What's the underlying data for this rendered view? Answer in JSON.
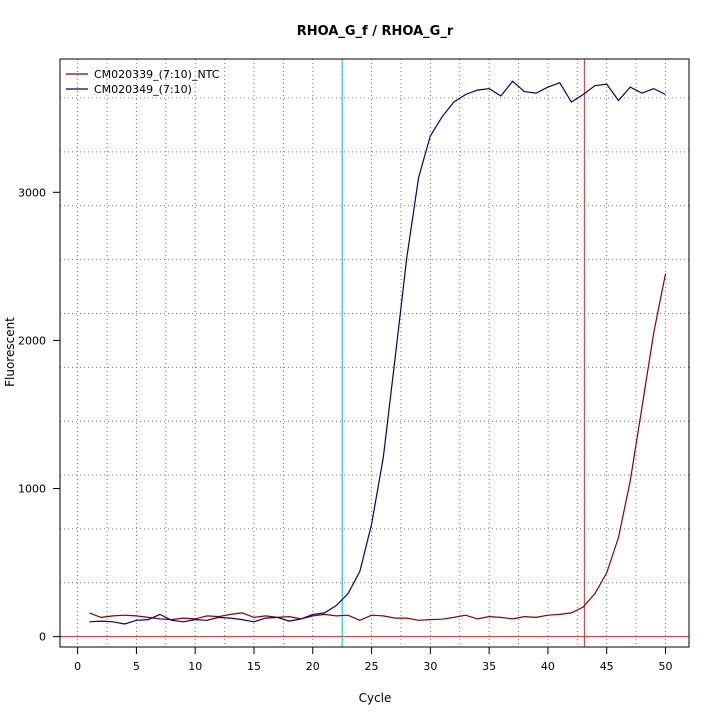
{
  "chart_data": {
    "type": "line",
    "title": "RHOA_G_f / RHOA_G_r",
    "xlabel": "Cycle",
    "ylabel": "Fluorescent",
    "xlim": [
      -1.5,
      52
    ],
    "ylim": [
      -70,
      3900
    ],
    "x_ticks": [
      0,
      5,
      10,
      15,
      20,
      25,
      30,
      35,
      40,
      45,
      50
    ],
    "y_ticks": [
      0,
      1000,
      2000,
      3000
    ],
    "grid": true,
    "legend_position": "top-left",
    "baseline_y": 0,
    "threshold_lines": [
      {
        "x": 22.5,
        "color": "#00bcd4"
      },
      {
        "x": 43.1,
        "color": "#d32f2f"
      }
    ],
    "x": [
      1,
      2,
      3,
      4,
      5,
      6,
      7,
      8,
      9,
      10,
      11,
      12,
      13,
      14,
      15,
      16,
      17,
      18,
      19,
      20,
      21,
      22,
      23,
      24,
      25,
      26,
      27,
      28,
      29,
      30,
      31,
      32,
      33,
      34,
      35,
      36,
      37,
      38,
      39,
      40,
      41,
      42,
      43,
      44,
      45,
      46,
      47,
      48,
      49,
      50
    ],
    "series": [
      {
        "name": "CM020339_(7:10)_NTC",
        "color": "#8b0000",
        "values": [
          160,
          130,
          140,
          145,
          140,
          130,
          120,
          115,
          125,
          120,
          140,
          135,
          150,
          160,
          130,
          140,
          130,
          135,
          120,
          140,
          150,
          140,
          145,
          110,
          145,
          140,
          125,
          125,
          110,
          115,
          118,
          130,
          145,
          120,
          135,
          130,
          120,
          135,
          130,
          145,
          150,
          160,
          200,
          290,
          430,
          670,
          1050,
          1550,
          2050,
          2450
        ]
      },
      {
        "name": "CM020349_(7:10)",
        "color": "#00008b",
        "values": [
          100,
          105,
          100,
          85,
          110,
          115,
          150,
          110,
          100,
          115,
          110,
          130,
          125,
          115,
          100,
          125,
          130,
          105,
          120,
          150,
          160,
          210,
          290,
          440,
          760,
          1210,
          1880,
          2560,
          3100,
          3380,
          3510,
          3610,
          3660,
          3690,
          3700,
          3650,
          3750,
          3680,
          3670,
          3710,
          3740,
          3610,
          3660,
          3720,
          3730,
          3620,
          3710,
          3670,
          3700,
          3660
        ]
      }
    ]
  }
}
